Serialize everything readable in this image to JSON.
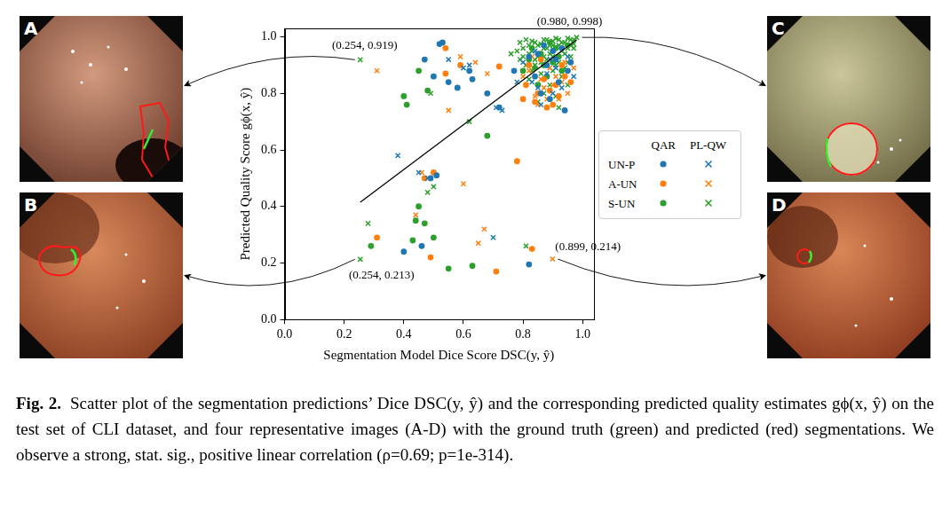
{
  "chart_data": {
    "type": "scatter",
    "x_label": "Segmentation Model Dice Score DSC(y, ŷ)",
    "y_label": "Predicted Quality Score gϕ(x, ŷ)",
    "xlim": [
      0,
      1.035
    ],
    "ylim": [
      0,
      1.03
    ],
    "xticks": [
      {
        "value": 0,
        "label": "0.0"
      },
      {
        "value": 0.2,
        "label": "0.2"
      },
      {
        "value": 0.4,
        "label": "0.4"
      },
      {
        "value": 0.6,
        "label": "0.6"
      },
      {
        "value": 0.8,
        "label": "0.8"
      },
      {
        "value": 1,
        "label": "1.0"
      }
    ],
    "yticks": [
      {
        "value": 0,
        "label": "0.0"
      },
      {
        "value": 0.2,
        "label": "0.2"
      },
      {
        "value": 0.4,
        "label": "0.4"
      },
      {
        "value": 0.6,
        "label": "0.6"
      },
      {
        "value": 0.8,
        "label": "0.8"
      },
      {
        "value": 1,
        "label": "1.0"
      }
    ],
    "grid": false,
    "legend": "right",
    "series": [
      {
        "name": "UN-P",
        "method": "QAR",
        "color": "#1f77b4",
        "marker": "circle",
        "values": [
          [
            0.53,
            0.98
          ],
          [
            0.52,
            0.975
          ],
          [
            0.47,
            0.92
          ],
          [
            0.5,
            0.86
          ],
          [
            0.55,
            0.84
          ],
          [
            0.58,
            0.82
          ],
          [
            0.63,
            0.85
          ],
          [
            0.62,
            0.88
          ],
          [
            0.68,
            0.8
          ],
          [
            0.72,
            0.75
          ],
          [
            0.49,
            0.5
          ],
          [
            0.51,
            0.51
          ],
          [
            0.4,
            0.24
          ],
          [
            0.46,
            0.26
          ],
          [
            0.82,
            0.195
          ],
          [
            0.77,
            0.88
          ],
          [
            0.82,
            0.93
          ],
          [
            0.85,
            0.94
          ],
          [
            0.88,
            0.9
          ],
          [
            0.9,
            0.95
          ],
          [
            0.92,
            0.84
          ],
          [
            0.94,
            0.74
          ],
          [
            0.95,
            0.88
          ],
          [
            0.86,
            0.8
          ],
          [
            0.89,
            0.78
          ],
          [
            0.91,
            0.92
          ],
          [
            0.93,
            0.96
          ],
          [
            0.84,
            0.86
          ],
          [
            0.96,
            0.91
          ],
          [
            0.87,
            0.97
          ]
        ]
      },
      {
        "name": "UN-P",
        "method": "PL-QW",
        "color": "#1f77b4",
        "marker": "x",
        "values": [
          [
            0.38,
            0.58
          ],
          [
            0.55,
            0.92
          ],
          [
            0.6,
            0.89
          ],
          [
            0.62,
            0.9
          ],
          [
            0.71,
            0.75
          ],
          [
            0.73,
            0.74
          ],
          [
            0.45,
            0.52
          ],
          [
            0.48,
            0.5
          ],
          [
            0.7,
            0.29
          ],
          [
            0.83,
            0.84
          ],
          [
            0.86,
            0.76
          ],
          [
            0.9,
            0.8
          ],
          [
            0.93,
            0.82
          ],
          [
            0.88,
            0.87
          ],
          [
            0.8,
            0.91
          ],
          [
            0.84,
            0.95
          ],
          [
            0.91,
            0.89
          ],
          [
            0.95,
            0.93
          ],
          [
            0.97,
            0.86
          ],
          [
            0.85,
            0.82
          ],
          [
            0.89,
            0.92
          ],
          [
            0.78,
            0.84
          ]
        ]
      },
      {
        "name": "A-UN",
        "method": "QAR",
        "color": "#ff7f0e",
        "marker": "circle",
        "values": [
          [
            0.54,
            0.87
          ],
          [
            0.54,
            0.96
          ],
          [
            0.59,
            0.9
          ],
          [
            0.72,
            0.895
          ],
          [
            0.78,
            0.56
          ],
          [
            0.47,
            0.5
          ],
          [
            0.5,
            0.52
          ],
          [
            0.31,
            0.29
          ],
          [
            0.49,
            0.22
          ],
          [
            0.71,
            0.17
          ],
          [
            0.83,
            0.25
          ],
          [
            0.8,
            0.78
          ],
          [
            0.85,
            0.8
          ],
          [
            0.9,
            0.76
          ],
          [
            0.94,
            0.86
          ],
          [
            0.82,
            0.9
          ],
          [
            0.87,
            0.85
          ],
          [
            0.89,
            0.81
          ],
          [
            0.92,
            0.79
          ],
          [
            0.88,
            0.75
          ],
          [
            0.91,
            0.83
          ],
          [
            0.84,
            0.77
          ],
          [
            0.93,
            0.9
          ],
          [
            0.86,
            0.92
          ],
          [
            0.96,
            0.84
          ],
          [
            0.81,
            0.83
          ]
        ]
      },
      {
        "name": "A-UN",
        "method": "PL-QW",
        "color": "#ff7f0e",
        "marker": "x",
        "values": [
          [
            0.31,
            0.88
          ],
          [
            0.59,
            0.93
          ],
          [
            0.64,
            0.91
          ],
          [
            0.68,
            0.87
          ],
          [
            0.55,
            0.74
          ],
          [
            0.46,
            0.52
          ],
          [
            0.6,
            0.48
          ],
          [
            0.44,
            0.37
          ],
          [
            0.65,
            0.27
          ],
          [
            0.67,
            0.32
          ],
          [
            0.899,
            0.214
          ],
          [
            0.82,
            0.88
          ],
          [
            0.87,
            0.82
          ],
          [
            0.91,
            0.86
          ],
          [
            0.95,
            0.8
          ],
          [
            0.92,
            0.78
          ],
          [
            0.84,
            0.79
          ],
          [
            0.86,
            0.85
          ],
          [
            0.89,
            0.89
          ],
          [
            0.93,
            0.84
          ],
          [
            0.88,
            0.78
          ],
          [
            0.9,
            0.83
          ],
          [
            0.83,
            0.93
          ],
          [
            0.94,
            0.91
          ],
          [
            0.85,
            0.76
          ],
          [
            0.97,
            0.89
          ],
          [
            0.8,
            0.86
          ]
        ]
      },
      {
        "name": "S-UN",
        "method": "QAR",
        "color": "#2ca02c",
        "marker": "circle",
        "values": [
          [
            0.45,
            0.88
          ],
          [
            0.48,
            0.81
          ],
          [
            0.4,
            0.79
          ],
          [
            0.41,
            0.76
          ],
          [
            0.68,
            0.65
          ],
          [
            0.45,
            0.4
          ],
          [
            0.47,
            0.34
          ],
          [
            0.44,
            0.35
          ],
          [
            0.43,
            0.28
          ],
          [
            0.5,
            0.29
          ],
          [
            0.29,
            0.26
          ],
          [
            0.55,
            0.18
          ],
          [
            0.63,
            0.19
          ],
          [
            0.8,
            0.88
          ],
          [
            0.82,
            0.92
          ],
          [
            0.86,
            0.94
          ],
          [
            0.9,
            0.91
          ],
          [
            0.95,
            0.97
          ],
          [
            0.84,
            0.89
          ],
          [
            0.88,
            0.86
          ],
          [
            0.92,
            0.93
          ],
          [
            0.87,
            0.9
          ],
          [
            0.93,
            0.88
          ],
          [
            0.91,
            0.96
          ],
          [
            0.83,
            0.96
          ],
          [
            0.89,
            0.98
          ],
          [
            0.85,
            0.83
          ]
        ]
      },
      {
        "name": "S-UN",
        "method": "PL-QW",
        "color": "#2ca02c",
        "marker": "x",
        "values": [
          [
            0.254,
            0.919
          ],
          [
            0.254,
            0.213
          ],
          [
            0.28,
            0.34
          ],
          [
            0.48,
            0.45
          ],
          [
            0.5,
            0.47
          ],
          [
            0.49,
            0.8
          ],
          [
            0.62,
            0.7
          ],
          [
            0.81,
            0.26
          ],
          [
            0.76,
            0.94
          ],
          [
            0.78,
            0.95
          ],
          [
            0.79,
            0.92
          ],
          [
            0.8,
            0.96
          ],
          [
            0.81,
            0.99
          ],
          [
            0.82,
            0.97
          ],
          [
            0.83,
            0.985
          ],
          [
            0.84,
            0.98
          ],
          [
            0.85,
            0.93
          ],
          [
            0.86,
            0.975
          ],
          [
            0.87,
            0.99
          ],
          [
            0.88,
            0.99
          ],
          [
            0.89,
            0.94
          ],
          [
            0.9,
            0.985
          ],
          [
            0.91,
            0.995
          ],
          [
            0.92,
            0.99
          ],
          [
            0.93,
            0.95
          ],
          [
            0.94,
            0.98
          ],
          [
            0.95,
            0.995
          ],
          [
            0.96,
            0.99
          ],
          [
            0.97,
            0.96
          ],
          [
            0.98,
            0.998
          ],
          [
            0.83,
            0.95
          ],
          [
            0.87,
            0.96
          ],
          [
            0.91,
            0.965
          ],
          [
            0.95,
            0.96
          ],
          [
            0.97,
            0.975
          ],
          [
            0.84,
            0.9
          ],
          [
            0.88,
            0.92
          ],
          [
            0.92,
            0.91
          ],
          [
            0.96,
            0.93
          ],
          [
            0.86,
            0.87
          ],
          [
            0.9,
            0.88
          ],
          [
            0.94,
            0.89
          ],
          [
            0.82,
            0.85
          ],
          [
            0.89,
            0.83
          ],
          [
            0.93,
            0.86
          ],
          [
            0.87,
            0.8
          ],
          [
            0.91,
            0.79
          ],
          [
            0.95,
            0.83
          ],
          [
            0.85,
            0.77
          ],
          [
            0.92,
            0.75
          ],
          [
            0.8,
            0.93
          ],
          [
            0.81,
            0.9
          ],
          [
            0.85,
            0.97
          ],
          [
            0.89,
            0.97
          ],
          [
            0.93,
            0.98
          ],
          [
            0.94,
            0.94
          ],
          [
            0.96,
            0.97
          ],
          [
            0.86,
            0.91
          ],
          [
            0.9,
            0.93
          ],
          [
            0.82,
            0.94
          ],
          [
            0.88,
            0.96
          ],
          [
            0.92,
            0.97
          ],
          [
            0.84,
            0.92
          ],
          [
            0.97,
            0.99
          ],
          [
            0.79,
            0.98
          ],
          [
            0.83,
            0.88
          ],
          [
            0.87,
            0.93
          ],
          [
            0.91,
            0.9
          ],
          [
            0.95,
            0.91
          ],
          [
            0.9,
            0.97
          ]
        ]
      }
    ],
    "trend_line": {
      "x": [
        0.254,
        0.98
      ],
      "y": [
        0.415,
        0.99
      ],
      "color": "#000000"
    },
    "annotations": [
      {
        "x": 0.254,
        "y": 0.919,
        "text": "(0.254, 0.919)",
        "panel": "A"
      },
      {
        "x": 0.98,
        "y": 0.998,
        "text": "(0.980, 0.998)",
        "panel": "C"
      },
      {
        "x": 0.254,
        "y": 0.213,
        "text": "(0.254, 0.213)",
        "panel": "B"
      },
      {
        "x": 0.899,
        "y": 0.214,
        "text": "(0.899, 0.214)",
        "panel": "D"
      }
    ]
  },
  "panels": [
    {
      "label": "A"
    },
    {
      "label": "B"
    },
    {
      "label": "C"
    },
    {
      "label": "D"
    }
  ],
  "caption": {
    "label": "Fig. 2.",
    "text": "Scatter plot of the segmentation predictions’ Dice DSC(y, ŷ) and the corresponding predicted quality estimates gϕ(x, ŷ) on the test set of CLI dataset, and four representative images (A-D) with the ground truth (green) and predicted (red) segmentations. We observe a strong, stat. sig., positive linear correlation (ρ=0.69; p=1e-314)."
  }
}
